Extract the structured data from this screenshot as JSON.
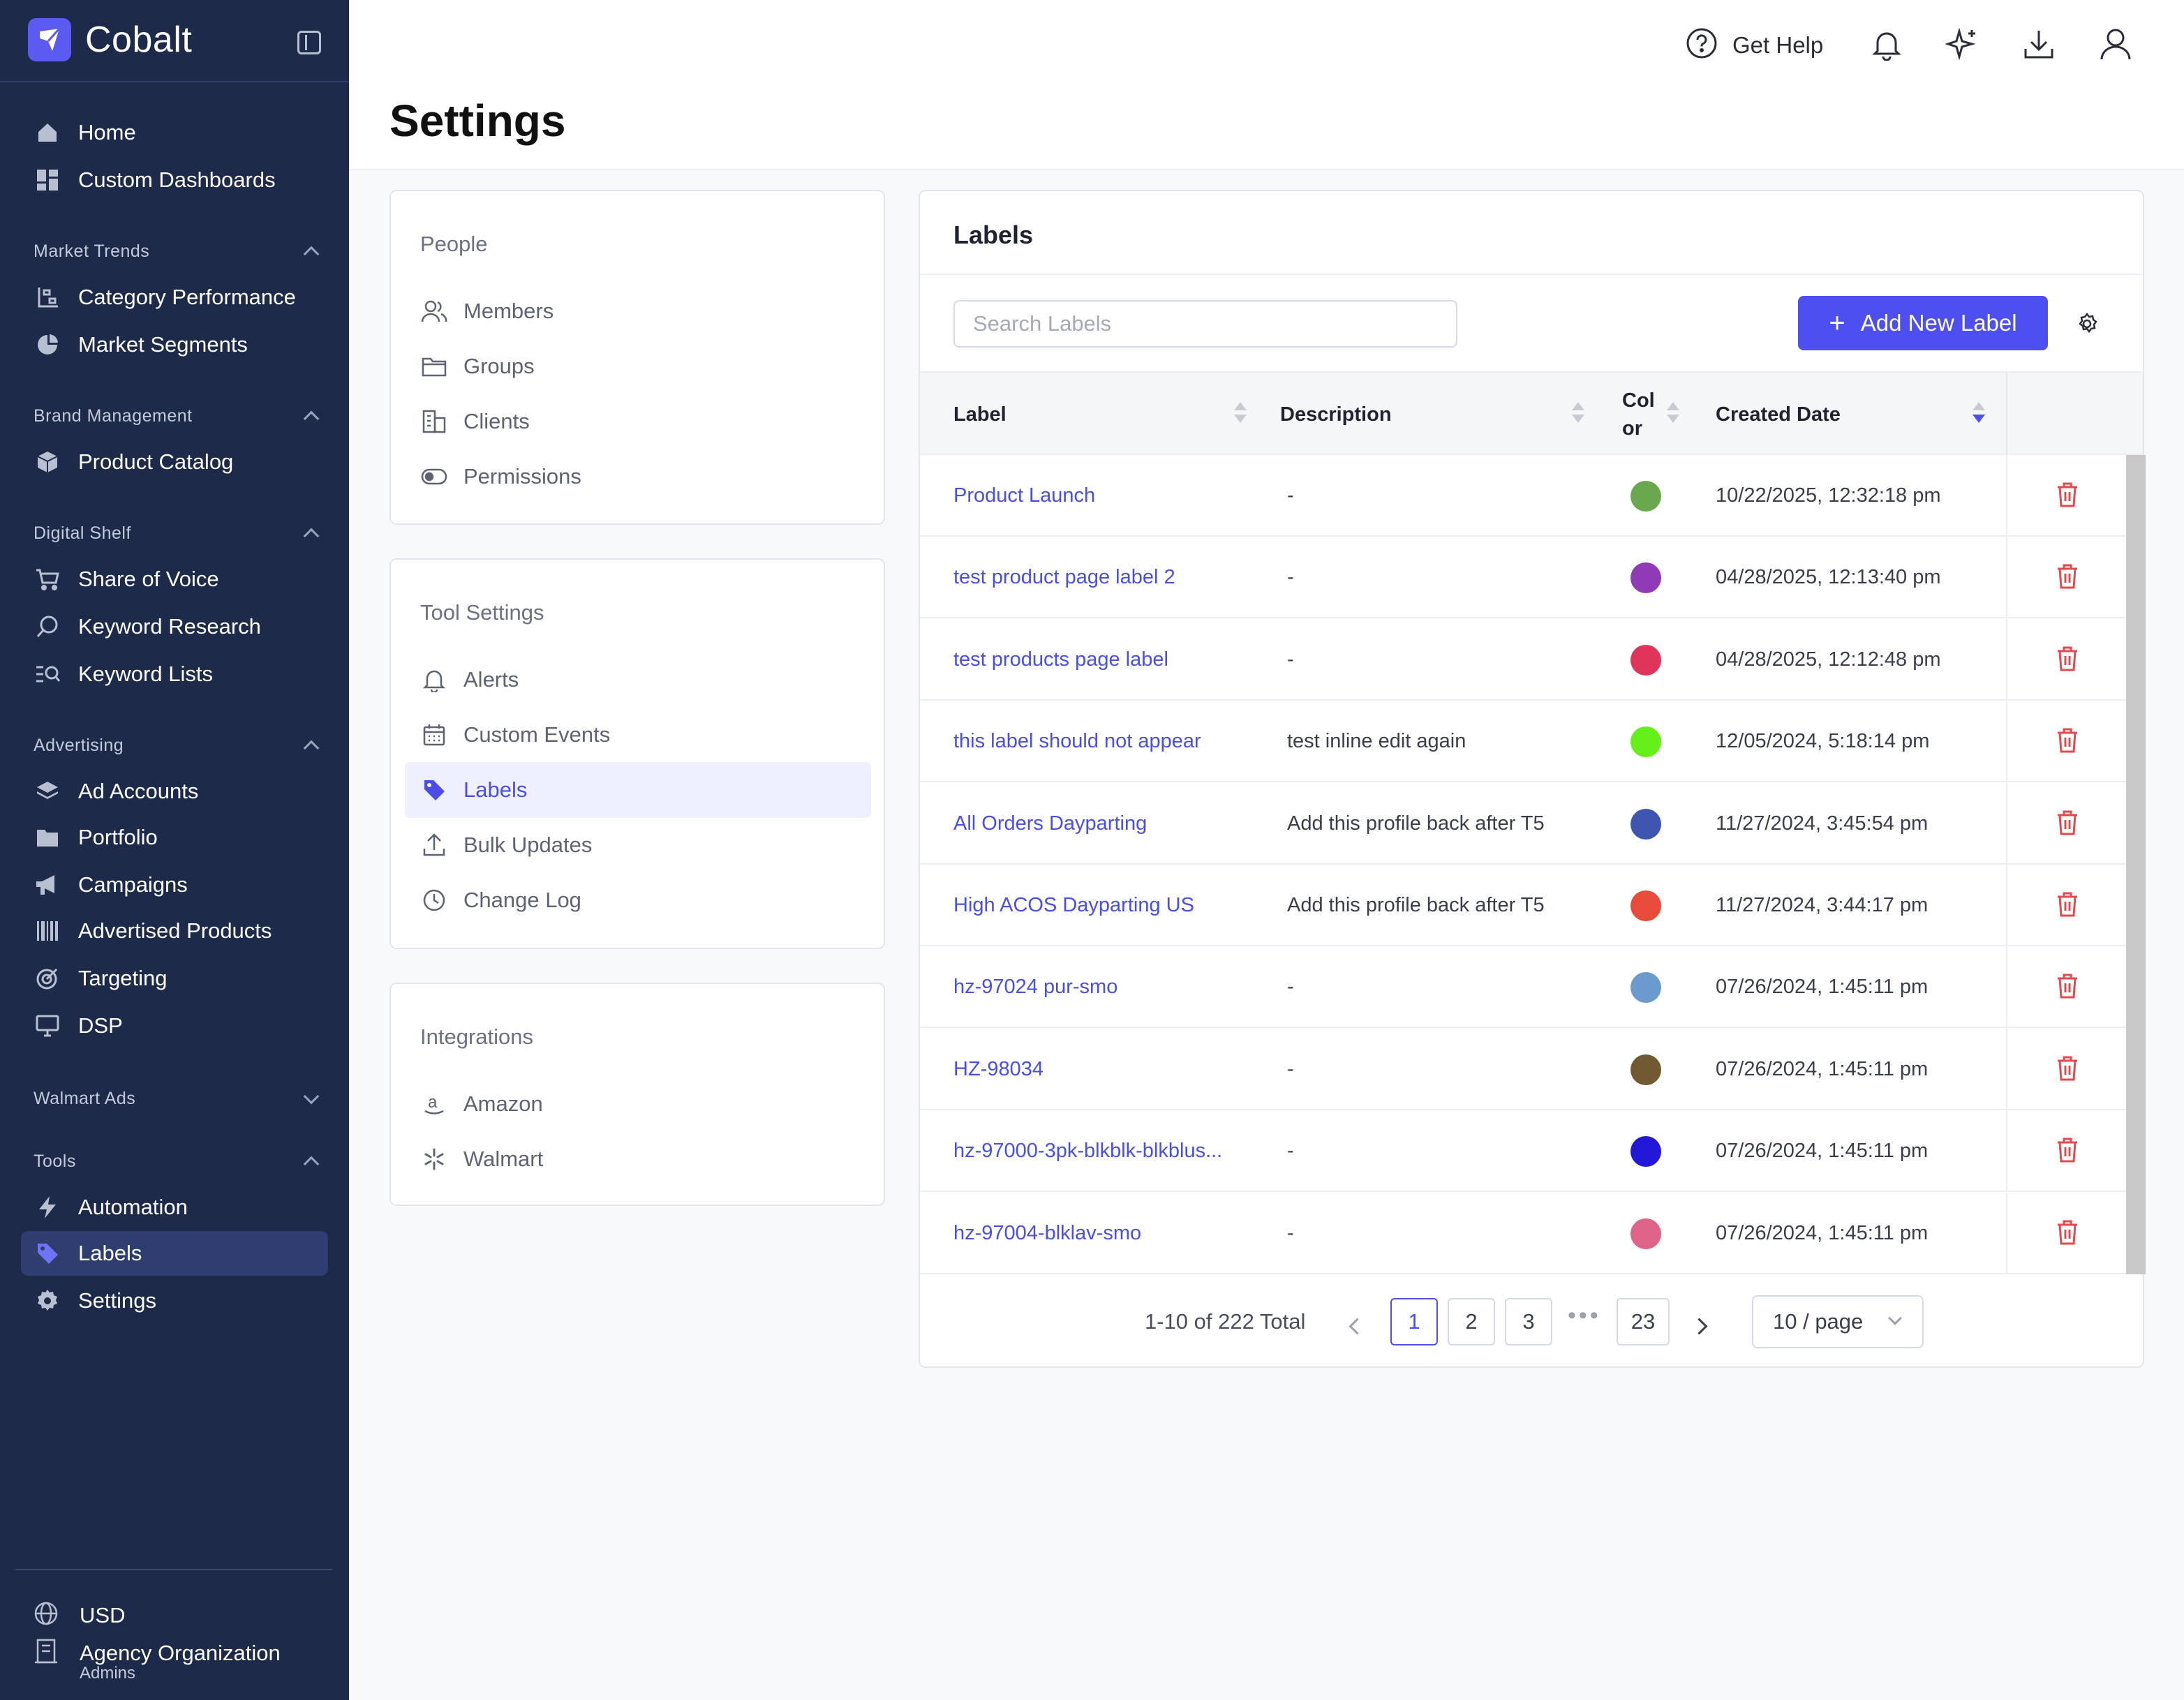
{
  "app": {
    "name": "Cobalt"
  },
  "sidebar": {
    "top_items": [
      {
        "label": "Home",
        "icon": "home-icon"
      },
      {
        "label": "Custom Dashboards",
        "icon": "dashboard-icon"
      }
    ],
    "sections": [
      {
        "title": "Market Trends",
        "expanded": true,
        "items": [
          {
            "label": "Category Performance",
            "icon": "hierarchy-icon"
          },
          {
            "label": "Market Segments",
            "icon": "pie-chart-icon"
          }
        ]
      },
      {
        "title": "Brand Management",
        "expanded": true,
        "items": [
          {
            "label": "Product Catalog",
            "icon": "box-icon"
          }
        ]
      },
      {
        "title": "Digital Shelf",
        "expanded": true,
        "items": [
          {
            "label": "Share of Voice",
            "icon": "cart-icon"
          },
          {
            "label": "Keyword Research",
            "icon": "search-icon"
          },
          {
            "label": "Keyword Lists",
            "icon": "list-search-icon"
          }
        ]
      },
      {
        "title": "Advertising",
        "expanded": true,
        "items": [
          {
            "label": "Ad Accounts",
            "icon": "layers-icon"
          },
          {
            "label": "Portfolio",
            "icon": "folder-icon"
          },
          {
            "label": "Campaigns",
            "icon": "megaphone-icon"
          },
          {
            "label": "Advertised Products",
            "icon": "barcode-icon"
          },
          {
            "label": "Targeting",
            "icon": "target-icon"
          },
          {
            "label": "DSP",
            "icon": "monitor-icon"
          }
        ]
      },
      {
        "title": "Walmart Ads",
        "expanded": false,
        "items": []
      },
      {
        "title": "Tools",
        "expanded": true,
        "items": [
          {
            "label": "Automation",
            "icon": "lightning-icon"
          },
          {
            "label": "Labels",
            "icon": "tag-icon",
            "active": true
          },
          {
            "label": "Settings",
            "icon": "gear-icon"
          }
        ]
      }
    ],
    "footer": {
      "currency": "USD",
      "org_name": "Agency Organization",
      "org_role": "Admins"
    }
  },
  "header": {
    "page_title": "Settings",
    "help_label": "Get Help",
    "icons": [
      "help-circle-icon",
      "bell-icon",
      "sparkle-icon",
      "download-icon",
      "user-icon"
    ]
  },
  "settings_menu": {
    "people": {
      "title": "People",
      "items": [
        {
          "label": "Members",
          "icon": "users-icon"
        },
        {
          "label": "Groups",
          "icon": "folder-icon"
        },
        {
          "label": "Clients",
          "icon": "building-icon"
        },
        {
          "label": "Permissions",
          "icon": "toggle-icon"
        }
      ]
    },
    "tools": {
      "title": "Tool Settings",
      "items": [
        {
          "label": "Alerts",
          "icon": "bell-icon"
        },
        {
          "label": "Custom Events",
          "icon": "calendar-icon"
        },
        {
          "label": "Labels",
          "icon": "tag-icon",
          "active": true
        },
        {
          "label": "Bulk Updates",
          "icon": "upload-icon"
        },
        {
          "label": "Change Log",
          "icon": "clock-icon"
        }
      ]
    },
    "integrations": {
      "title": "Integrations",
      "items": [
        {
          "label": "Amazon",
          "icon": "amazon-icon"
        },
        {
          "label": "Walmart",
          "icon": "walmart-icon"
        }
      ]
    }
  },
  "labels_panel": {
    "title": "Labels",
    "search_placeholder": "Search Labels",
    "add_button": "Add New Label",
    "columns": {
      "label": "Label",
      "description": "Description",
      "color": "Col or",
      "created": "Created Date"
    },
    "rows": [
      {
        "label": "Product Launch",
        "description": "-",
        "color": "#6aa84f",
        "created": "10/22/2025, 12:32:18 pm"
      },
      {
        "label": "test product page label 2",
        "description": "-",
        "color": "#8e3bb5",
        "created": "04/28/2025, 12:13:40 pm"
      },
      {
        "label": "test products page label",
        "description": "-",
        "color": "#e0345a",
        "created": "04/28/2025, 12:12:48 pm"
      },
      {
        "label": "this label should not appear",
        "description": "test inline edit again",
        "color": "#66f01a",
        "created": "12/05/2024, 5:18:14 pm"
      },
      {
        "label": "All Orders Dayparting",
        "description": "Add this profile back after T5",
        "color": "#3f56b0",
        "created": "11/27/2024, 3:45:54 pm"
      },
      {
        "label": "High ACOS Dayparting US",
        "description": "Add this profile back after T5",
        "color": "#e84b3a",
        "created": "11/27/2024, 3:44:17 pm"
      },
      {
        "label": "hz-97024 pur-smo",
        "description": "-",
        "color": "#6b9bce",
        "created": "07/26/2024, 1:45:11 pm"
      },
      {
        "label": "HZ-98034",
        "description": "-",
        "color": "#715a32",
        "created": "07/26/2024, 1:45:11 pm"
      },
      {
        "label": "hz-97000-3pk-blkblk-blkblus...",
        "description": "-",
        "color": "#2318d8",
        "created": "07/26/2024, 1:45:11 pm"
      },
      {
        "label": "hz-97004-blklav-smo",
        "description": "-",
        "color": "#de6389",
        "created": "07/26/2024, 1:45:11 pm"
      }
    ],
    "pagination": {
      "total_text": "1-10 of 222 Total",
      "pages": [
        "1",
        "2",
        "3"
      ],
      "ellipsis": "•••",
      "last_page": "23",
      "current": "1",
      "page_size": "10 / page"
    }
  },
  "colors": {
    "accent": "#4d4ff0",
    "sidebar_bg": "#1e2a4a",
    "danger": "#e5484d"
  }
}
